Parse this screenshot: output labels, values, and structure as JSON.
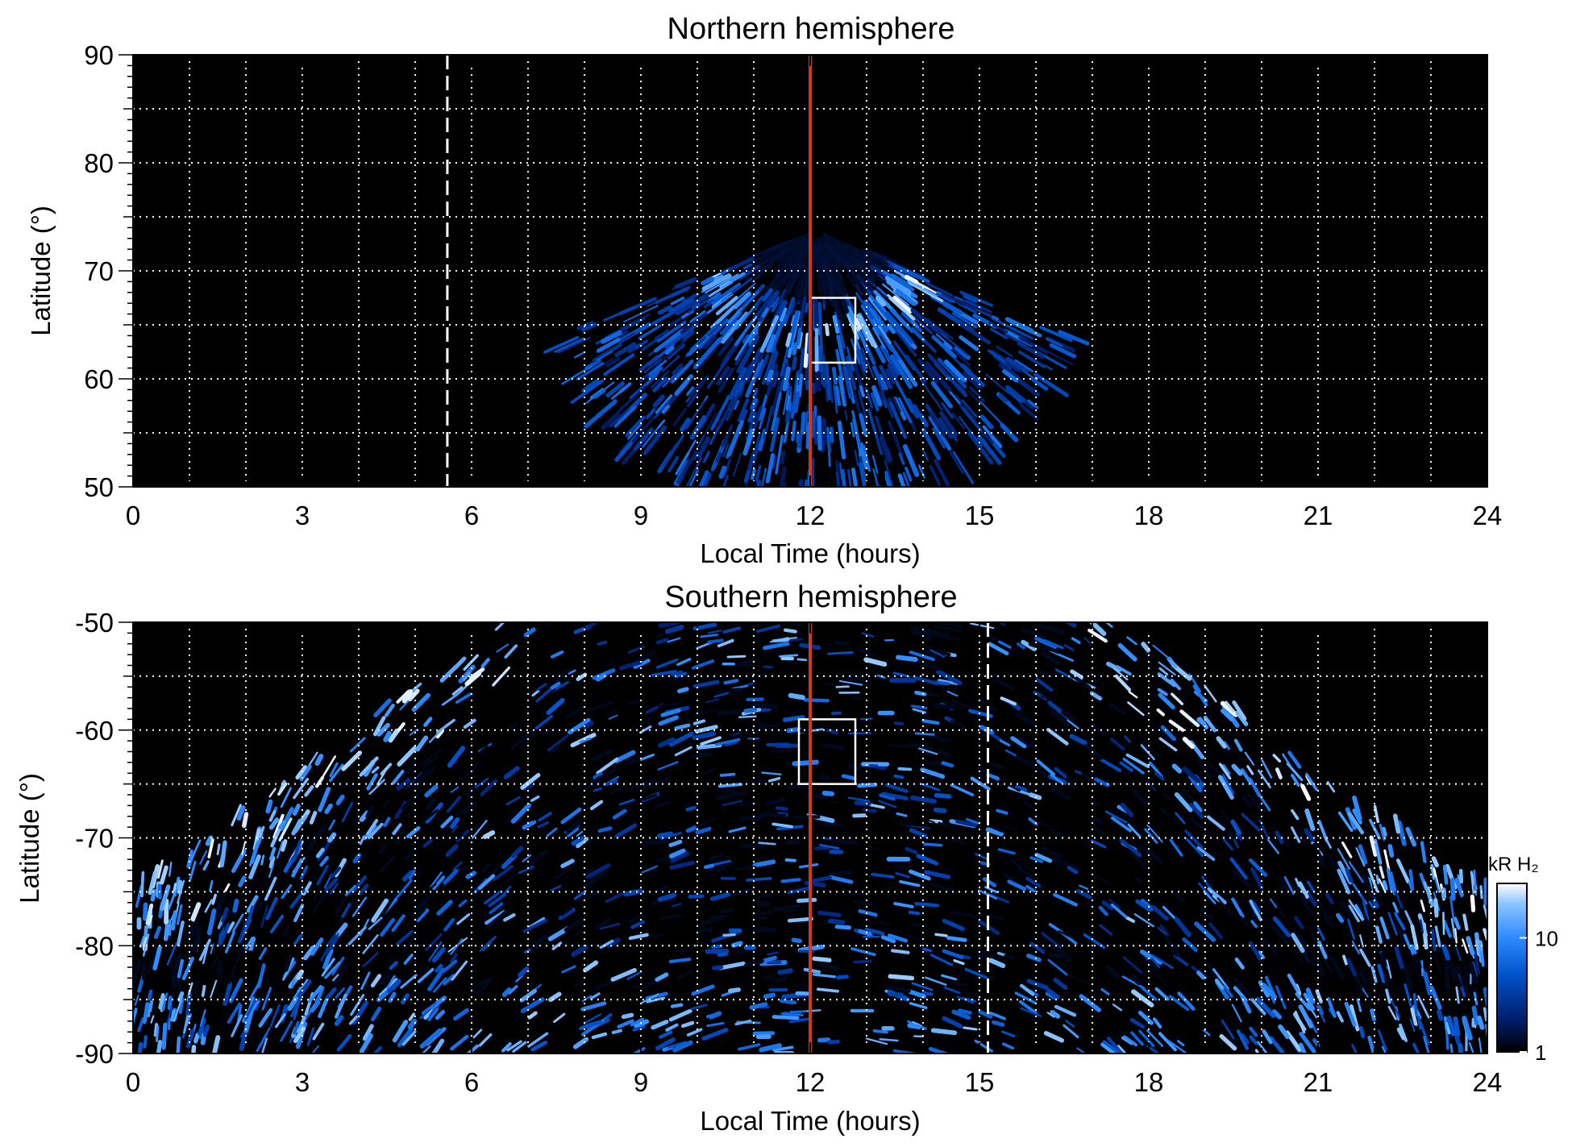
{
  "chart_data": [
    {
      "type": "heatmap",
      "title": "Northern hemisphere",
      "xlabel": "Local Time (hours)",
      "ylabel": "Latitude (°)",
      "xlim": [
        0,
        24
      ],
      "ylim": [
        50,
        90
      ],
      "xticks": [
        "0",
        "3",
        "6",
        "9",
        "12",
        "15",
        "18",
        "21",
        "24"
      ],
      "yticks": [
        "50",
        "60",
        "70",
        "80",
        "90"
      ],
      "grid": true,
      "noon_line_lt": 12,
      "noon_line_color": "#d03a1a",
      "dashed_line_lt": 5.57,
      "box": {
        "lt": [
          12.0,
          12.8
        ],
        "lat": [
          61.5,
          67.5
        ]
      },
      "emission": {
        "center_lt": 12.1,
        "oval_peak_lat": 64.5,
        "poleward_edge_lat": 73,
        "equatorward_edge_lat": 50,
        "lt_extent": [
          7.6,
          16.6
        ]
      }
    },
    {
      "type": "heatmap",
      "title": "Southern hemisphere",
      "xlabel": "Local Time (hours)",
      "ylabel": "Latitude (°)",
      "xlim": [
        0,
        24
      ],
      "ylim": [
        -90,
        -50
      ],
      "xticks": [
        "0",
        "3",
        "6",
        "9",
        "12",
        "15",
        "18",
        "21",
        "24"
      ],
      "yticks": [
        "-50",
        "-60",
        "-70",
        "-80",
        "-90"
      ],
      "grid": true,
      "noon_line_lt": 12,
      "noon_line_color": "#d03a1a",
      "dashed_line_lt": 15.15,
      "box": {
        "lt": [
          11.8,
          12.8
        ],
        "lat": [
          -65,
          -59
        ]
      },
      "emission": {
        "center_lt": 12,
        "oval_peak_lat": -64,
        "lt_extent": [
          0,
          24
        ]
      },
      "colorbar": {
        "label": "kR H₂",
        "scale": "log",
        "range": [
          1,
          30
        ],
        "ticks": [
          "1",
          "10"
        ],
        "colors": [
          "#000000",
          "#001f6e",
          "#0050c8",
          "#2e8cff",
          "#8cc4ff",
          "#ffffff"
        ]
      }
    }
  ]
}
